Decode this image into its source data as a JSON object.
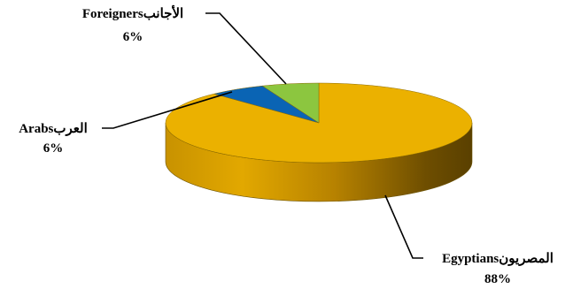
{
  "chart_data": {
    "type": "pie",
    "style": "3d",
    "title": "",
    "legend": "none",
    "slices": [
      {
        "name": "Egyptians",
        "name_ar": "المصريون",
        "value": 88,
        "label": "88%",
        "color": "#EBB100",
        "side_color": "#B88400"
      },
      {
        "name": "Arabs",
        "name_ar": "العرب",
        "value": 6,
        "label": "6%",
        "color": "#0A64B4",
        "side_color": "#074A86"
      },
      {
        "name": "Foreigners",
        "name_ar": "الأجانب",
        "value": 6,
        "label": "6%",
        "color": "#8CC63F",
        "side_color": "#5F8F26"
      }
    ]
  }
}
